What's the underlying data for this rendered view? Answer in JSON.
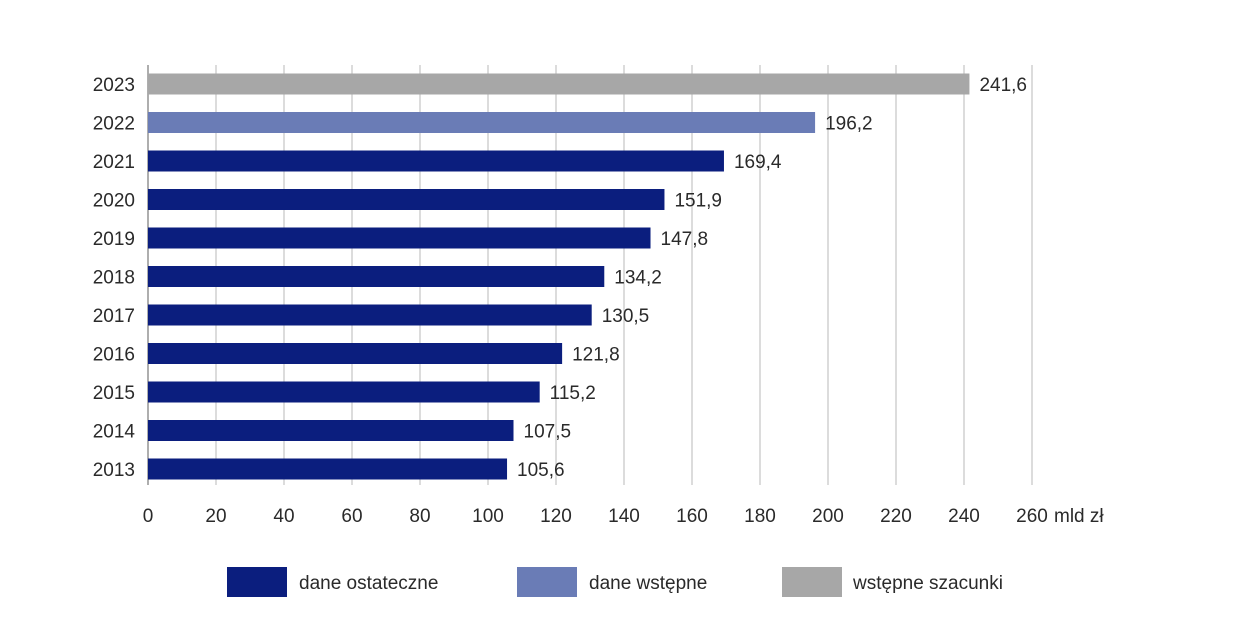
{
  "chart_data": {
    "type": "bar",
    "orientation": "horizontal",
    "categories": [
      "2023",
      "2022",
      "2021",
      "2020",
      "2019",
      "2018",
      "2017",
      "2016",
      "2015",
      "2014",
      "2013"
    ],
    "values": [
      241.6,
      196.2,
      169.4,
      151.9,
      147.8,
      134.2,
      130.5,
      121.8,
      115.2,
      107.5,
      105.6
    ],
    "value_labels": [
      "241,6",
      "196,2",
      "169,4",
      "151,9",
      "147,8",
      "134,2",
      "130,5",
      "121,8",
      "115,2",
      "107,5",
      "105,6"
    ],
    "bar_series": [
      "wstępne szacunki",
      "dane wstępne",
      "dane ostateczne",
      "dane ostateczne",
      "dane ostateczne",
      "dane ostateczne",
      "dane ostateczne",
      "dane ostateczne",
      "dane ostateczne",
      "dane ostateczne",
      "dane ostateczne"
    ],
    "xlim": [
      0,
      260
    ],
    "xticks": [
      0,
      20,
      40,
      60,
      80,
      100,
      120,
      140,
      160,
      180,
      200,
      220,
      240,
      260
    ],
    "xtick_labels": [
      "0",
      "20",
      "40",
      "60",
      "80",
      "100",
      "120",
      "140",
      "160",
      "180",
      "200",
      "220",
      "240",
      "260"
    ],
    "x_unit": "mld zł",
    "grid": "vertical",
    "legend_position": "bottom",
    "series": [
      {
        "name": "dane ostateczne",
        "color": "#0b1e7e"
      },
      {
        "name": "dane wstępne",
        "color": "#6a7cb6"
      },
      {
        "name": "wstępne szacunki",
        "color": "#a7a7a7"
      }
    ]
  }
}
